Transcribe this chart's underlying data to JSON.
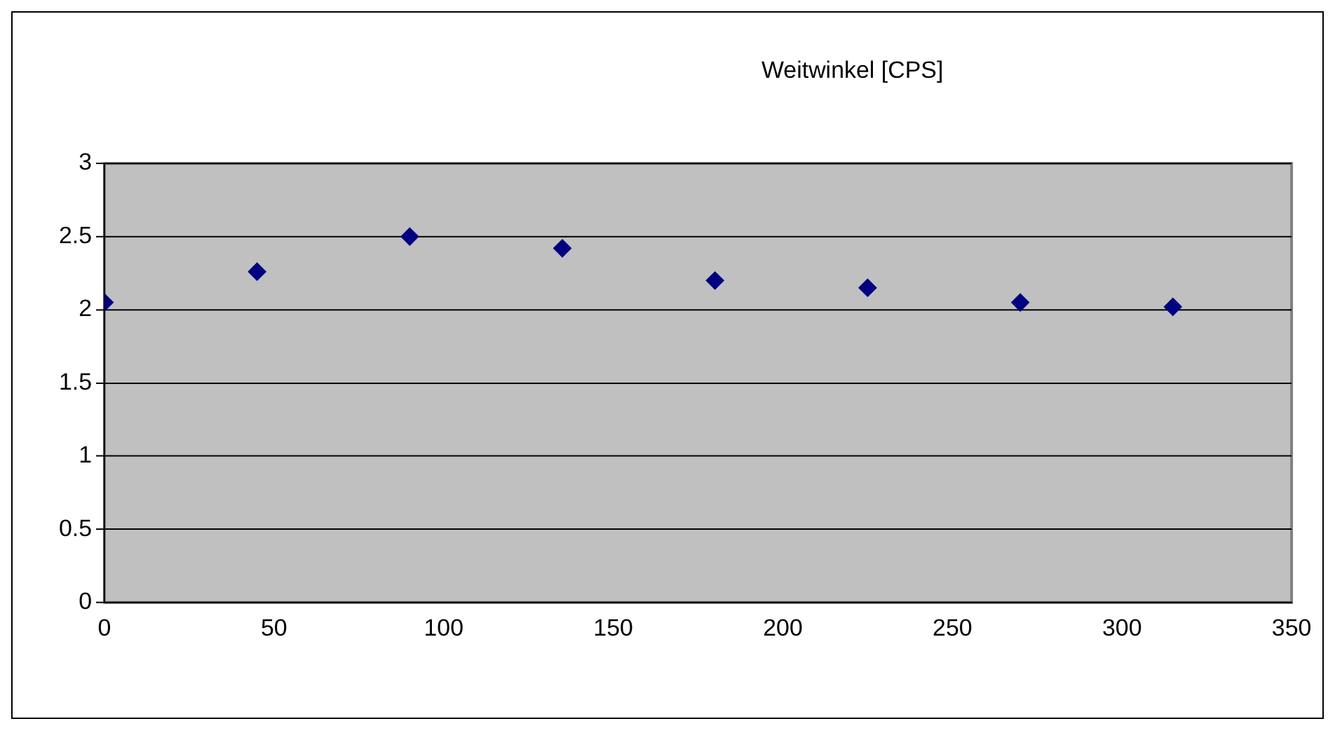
{
  "chart_data": {
    "type": "scatter",
    "title": "Weitwinkel [CPS]",
    "x": [
      0,
      45,
      90,
      135,
      180,
      225,
      270,
      315
    ],
    "series": [
      {
        "color": "#000080",
        "values": [
          2.05,
          2.26,
          2.5,
          2.42,
          2.2,
          2.15,
          2.05,
          2.02
        ]
      }
    ],
    "xlim": [
      0,
      350
    ],
    "xticks": [
      0,
      50,
      100,
      150,
      200,
      250,
      300,
      350
    ],
    "ylim": [
      0,
      3
    ],
    "yticks": [
      0,
      0.5,
      1,
      1.5,
      2,
      2.5,
      3
    ],
    "grid": "y",
    "legend": false,
    "marker": "diamond"
  }
}
